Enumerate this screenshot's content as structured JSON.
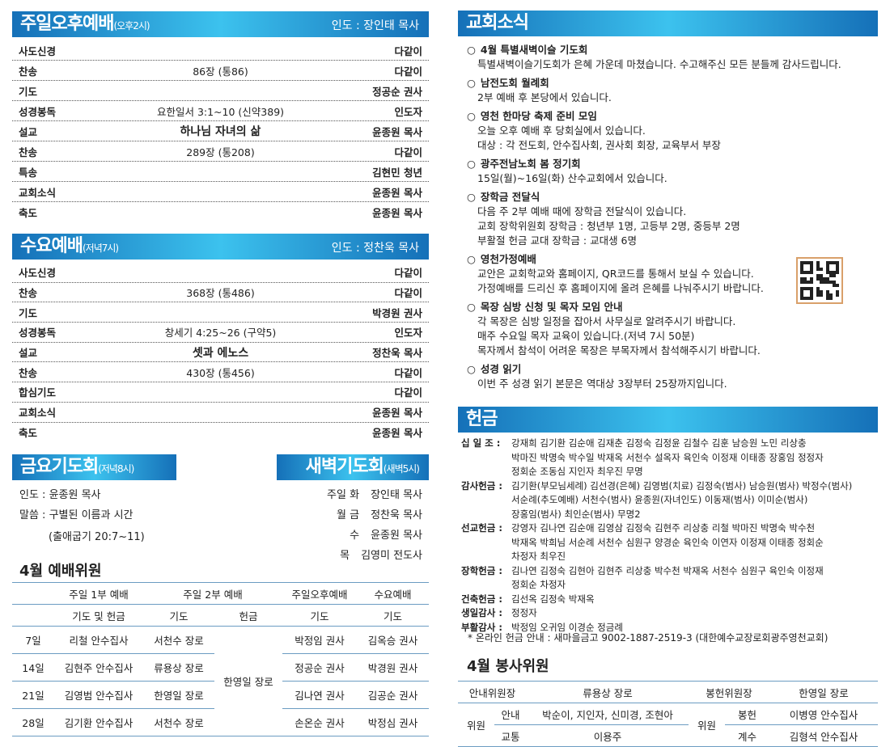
{
  "sunday_pm": {
    "title": "주일오후예배",
    "time": "(오후2시)",
    "leader": "인도 : 장인태 목사",
    "rows": [
      [
        "사도신경",
        "",
        "다같이"
      ],
      [
        "찬송",
        "86장 (통86)",
        "다같이"
      ],
      [
        "기도",
        "",
        "정공순 권사"
      ],
      [
        "성경봉독",
        "요한일서 3:1~10 (신약389)",
        "인도자"
      ],
      [
        "설교",
        "하나님 자녀의 삶",
        "윤종원 목사"
      ],
      [
        "찬송",
        "289장 (통208)",
        "다같이"
      ],
      [
        "특송",
        "",
        "김현민 청년"
      ],
      [
        "교회소식",
        "",
        "윤종원 목사"
      ],
      [
        "축도",
        "",
        "윤종원 목사"
      ]
    ]
  },
  "wednesday": {
    "title": "수요예배",
    "time": "(저녁7시)",
    "leader": "인도 : 정찬욱 목사",
    "rows": [
      [
        "사도신경",
        "",
        "다같이"
      ],
      [
        "찬송",
        "368장 (통486)",
        "다같이"
      ],
      [
        "기도",
        "",
        "박경원 권사"
      ],
      [
        "성경봉독",
        "창세기 4:25~26 (구약5)",
        "인도자"
      ],
      [
        "설교",
        "셋과 에노스",
        "정찬욱 목사"
      ],
      [
        "찬송",
        "430장 (통456)",
        "다같이"
      ],
      [
        "합심기도",
        "",
        "다같이"
      ],
      [
        "교회소식",
        "",
        "윤종원 목사"
      ],
      [
        "축도",
        "",
        "윤종원 목사"
      ]
    ]
  },
  "friday": {
    "title": "금요기도회",
    "time": "(저녁8시)",
    "leader": "인도 : 윤종원 목사",
    "message": "말씀 : 구별된 이름과 시간",
    "verse": "(출애굽기 20:7~11)"
  },
  "dawn": {
    "title": "새벽기도회",
    "time": "(새벽5시)",
    "rows": [
      [
        "주일 화",
        "장인태 목사"
      ],
      [
        "월 금",
        "정찬욱 목사"
      ],
      [
        "수",
        "윤종원 목사"
      ],
      [
        "목",
        "김영미 전도사"
      ]
    ]
  },
  "worship_committee": {
    "title": "4월 예배위원",
    "group_headers": [
      "주일 1부 예배",
      "주일 2부 예배",
      "주일오후예배",
      "수요예배"
    ],
    "sub_headers": [
      "기도 및 헌금",
      "기도",
      "헌금",
      "기도",
      "기도"
    ],
    "offering_all": "한영일 장로",
    "rows": [
      [
        "7일",
        "리철 안수집사",
        "서천수 장로",
        "박정임 권사",
        "김옥승 권사"
      ],
      [
        "14일",
        "김현주 안수집사",
        "류용상 장로",
        "정공순 권사",
        "박경원 권사"
      ],
      [
        "21일",
        "김영범 안수집사",
        "한영일 장로",
        "김나연 권사",
        "김공순 권사"
      ],
      [
        "28일",
        "김기환 안수집사",
        "서천수 장로",
        "손온순 권사",
        "박정심 권사"
      ]
    ]
  },
  "news": {
    "title": "교회소식",
    "bullet": "○",
    "items": [
      {
        "title": "4월 특별새벽이슬 기도회",
        "lines": [
          "특별새벽이슬기도회가 은혜 가운데 마쳤습니다. 수고해주신 모든 분들께 감사드립니다."
        ]
      },
      {
        "title": "남전도회 월례회",
        "lines": [
          "2부 예배 후 본당에서 있습니다."
        ]
      },
      {
        "title": "영천 한마당 축제 준비 모임",
        "lines": [
          "오늘 오후 예배 후 당회실에서 있습니다.",
          "대상 : 각 전도회, 안수집사회, 권사회 회장, 교육부서 부장"
        ]
      },
      {
        "title": "광주전남노회 봄 정기회",
        "lines": [
          "15일(월)~16일(화) 산수교회에서 있습니다."
        ]
      },
      {
        "title": "장학금 전달식",
        "lines": [
          "다음 주 2부 예배 때에 장학금 전달식이 있습니다.",
          "교회 장학위원회 장학금 : 청년부 1명, 고등부 2명, 중등부 2명",
          "부활절 헌금 교대 장학금 : 교대생 6명"
        ]
      },
      {
        "title": "영천가정예배",
        "lines": [
          "교안은 교회학교와 홈페이지, QR코드를 통해서 보실 수 있습니다.",
          "가정예배를 드리신 후 홈페이지에 올려 은혜를 나눠주시기 바랍니다."
        ]
      },
      {
        "title": "목장 심방 신청 및 목자 모임 안내",
        "lines": [
          "각 목장은 심방 일정을 잡아서 사무실로 알려주시기 바랍니다.",
          "매주 수요일 목자 교육이 있습니다.(저녁 7시 50분)",
          "목자께서 참석이 어려운 목장은 부목자께서 참석해주시기 바랍니다."
        ]
      },
      {
        "title": "성경 읽기",
        "lines": [
          "이번 주 성경 읽기 본문은 역대상 3장부터 25장까지입니다."
        ]
      }
    ]
  },
  "offering": {
    "title": "헌금",
    "groups": [
      {
        "label": "십 일 조 :",
        "lines": [
          "강재희 김기환 김순애 김재춘 김정숙 김정윤 김철수 김훈 남승원 노민 리상충",
          "박마진 박명숙 박수일 박재옥 서천수 설옥자 육인숙 이정재 이태종 장홍임 정정자",
          "정회순 조동심 지인자 최우진 무명"
        ]
      },
      {
        "label": "감사헌금 :",
        "lines": [
          "김기환(부모님세례) 김선경(은혜) 김영범(치료) 김정숙(범사) 남승원(범사) 박정수(범사)",
          "서순례(추도예배) 서천수(범사) 윤종원(자녀인도) 이동재(범사) 이미순(범사)",
          "장홍임(범사) 최인순(범사) 무명2"
        ]
      },
      {
        "label": "선교헌금 :",
        "lines": [
          "강영자 김나연 김순애 김영삼 김정숙 김현주 리상충 리철 박마진 박명숙 박수천",
          "박재옥 박희님 서순례 서천수 심원구 양경순 육인숙 이연자 이정재 이태종 정회순",
          "차정자 최우진"
        ]
      },
      {
        "label": "장학헌금 :",
        "lines": [
          "김나연 김정숙 김현아 김현주 리상충 박수천 박재옥 서천수 심원구 육인숙 이정재",
          "정회순 차정자"
        ]
      },
      {
        "label": "건축헌금 :",
        "lines": [
          "김선옥 김정숙 박재옥"
        ]
      },
      {
        "label": "생일감사 :",
        "lines": [
          "정정자"
        ]
      },
      {
        "label": "부활감사 :",
        "lines": [
          "박정임 오귀임 이경순 정금례"
        ]
      }
    ],
    "online": "* 온라인 헌금 안내 : 새마을금고 9002-1887-2519-3 (대한예수교장로회광주영천교회)"
  },
  "service_committee": {
    "title": "4월 봉사위원",
    "guide_head_label": "안내위원장",
    "guide_head": "류용상 장로",
    "offer_head_label": "봉헌위원장",
    "offer_head": "한영일 장로",
    "member_label": "위원",
    "guide_label": "안내",
    "guide_members": "박순이, 지인자, 신미경, 조현아",
    "traffic_label": "교통",
    "traffic_members": "이용주",
    "offer_label": "봉헌",
    "offer_members": "이병영 안수집사",
    "count_label": "계수",
    "count_members": "김형석 안수집사"
  },
  "colors": {
    "header_dark": "#1570b8",
    "header_light": "#3cc2ee",
    "rule": "#6b9cc2"
  }
}
